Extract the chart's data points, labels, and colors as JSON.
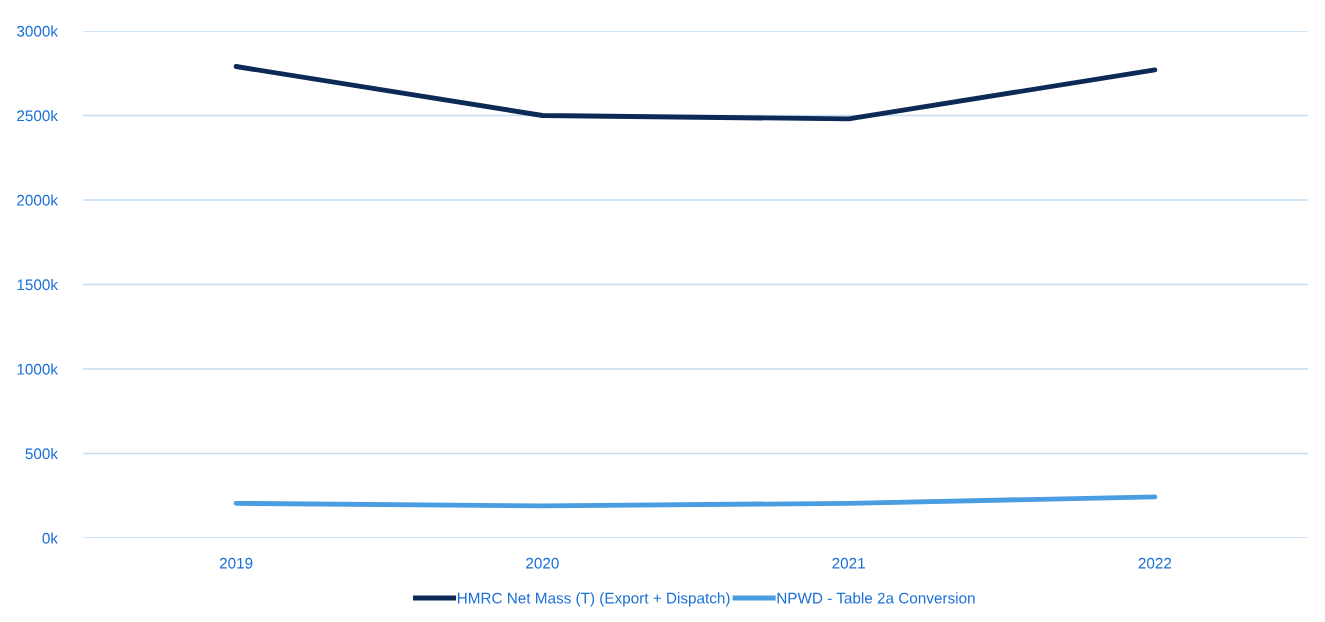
{
  "chart_data": {
    "type": "line",
    "categories": [
      "2019",
      "2020",
      "2021",
      "2022"
    ],
    "series": [
      {
        "name": "HMRC Net Mass (T) (Export + Dispatch)",
        "color": "#0c2a55",
        "values": [
          2790000,
          2500000,
          2480000,
          2770000
        ]
      },
      {
        "name": "NPWD - Table 2a Conversion",
        "color": "#4a9de0",
        "values": [
          205000,
          190000,
          205000,
          243000
        ]
      }
    ],
    "ylim": [
      0,
      3000000
    ],
    "yticks": [
      {
        "value": 0,
        "label": "0k"
      },
      {
        "value": 500000,
        "label": "500k"
      },
      {
        "value": 1000000,
        "label": "1000k"
      },
      {
        "value": 1500000,
        "label": "1500k"
      },
      {
        "value": 2000000,
        "label": "2000k"
      },
      {
        "value": 2500000,
        "label": "2500k"
      },
      {
        "value": 3000000,
        "label": "3000k"
      }
    ],
    "grid": "y",
    "legend": "bottom",
    "marker": "none",
    "line_style": "solid"
  }
}
